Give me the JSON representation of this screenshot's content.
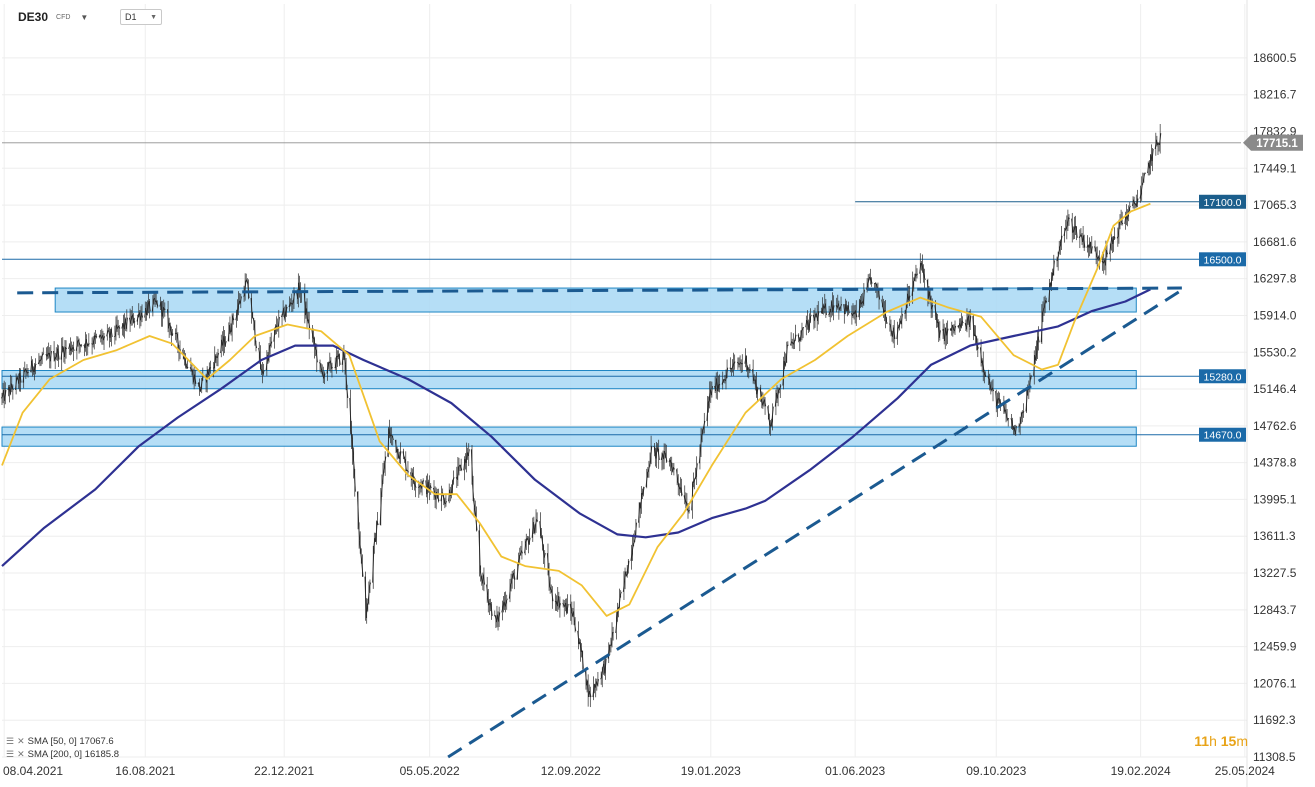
{
  "header": {
    "symbol": "DE30",
    "symbol_type": "CFD",
    "timeframe": "D1"
  },
  "countdown": {
    "hours": "11",
    "h": "h",
    "minutes": "15",
    "m": "m"
  },
  "indicators": [
    {
      "label": "SMA [50, 0] 17067.6",
      "color": "#f1c232"
    },
    {
      "label": "SMA [200, 0] 16185.8",
      "color": "#2e3192"
    }
  ],
  "chart_data": {
    "type": "candlestick",
    "symbol": "DE30",
    "timeframe": "D1",
    "ylim": [
      11308.5,
      18850
    ],
    "y_ticks": [
      18600.5,
      18216.7,
      17832.9,
      17449.1,
      17065.3,
      16681.6,
      16297.8,
      15914.0,
      15530.2,
      15146.4,
      14762.6,
      14378.8,
      13995.1,
      13611.3,
      13227.5,
      12843.7,
      12459.9,
      12076.1,
      11692.3,
      11308.5
    ],
    "y_tick_labels": [
      "18600.5",
      "18216.7",
      "17832.9",
      "17449.1",
      "17065.3",
      "16681.6",
      "16297.8",
      "15914.0",
      "15530.2",
      "15146.4",
      "14762.6",
      "14378.8",
      "13995.1",
      "13611.3",
      "13227.5",
      "12843.7",
      "12459.9",
      "12076.1",
      "11692.3",
      "11308.5"
    ],
    "x_labels": [
      "08.04.2021",
      "16.08.2021",
      "22.12.2021",
      "05.05.2022",
      "12.09.2022",
      "19.01.2023",
      "01.06.2023",
      "09.10.2023",
      "19.02.2024",
      "25.05.2024"
    ],
    "x_label_dates": [
      "2021-04-08",
      "2021-08-16",
      "2021-12-22",
      "2022-05-05",
      "2022-09-12",
      "2023-01-19",
      "2023-06-01",
      "2023-10-09",
      "2024-02-19",
      "2024-05-25"
    ],
    "x_range": [
      "2021-04-06",
      "2024-05-27"
    ],
    "current_price": {
      "value": 17715.1,
      "label": "17715.1",
      "color": "#8a8a8a"
    },
    "price_path": [
      [
        "2021-04-06",
        15050
      ],
      [
        "2021-05-05",
        15400
      ],
      [
        "2021-06-10",
        15600
      ],
      [
        "2021-07-15",
        15700
      ],
      [
        "2021-08-13",
        15950
      ],
      [
        "2021-08-28",
        16050
      ],
      [
        "2021-09-20",
        15500
      ],
      [
        "2021-10-05",
        15150
      ],
      [
        "2021-10-30",
        15700
      ],
      [
        "2021-11-17",
        16250
      ],
      [
        "2021-12-01",
        15300
      ],
      [
        "2021-12-15",
        15800
      ],
      [
        "2022-01-05",
        16200
      ],
      [
        "2022-01-25",
        15300
      ],
      [
        "2022-02-15",
        15500
      ],
      [
        "2022-03-07",
        12800
      ],
      [
        "2022-03-28",
        14700
      ],
      [
        "2022-04-20",
        14200
      ],
      [
        "2022-05-20",
        14000
      ],
      [
        "2022-06-10",
        14500
      ],
      [
        "2022-06-20",
        13250
      ],
      [
        "2022-07-05",
        12700
      ],
      [
        "2022-07-28",
        13400
      ],
      [
        "2022-08-12",
        13800
      ],
      [
        "2022-08-25",
        13000
      ],
      [
        "2022-09-14",
        12800
      ],
      [
        "2022-09-29",
        11950
      ],
      [
        "2022-10-15",
        12300
      ],
      [
        "2022-11-05",
        13400
      ],
      [
        "2022-11-25",
        14500
      ],
      [
        "2022-12-12",
        14400
      ],
      [
        "2022-12-30",
        13900
      ],
      [
        "2023-01-18",
        15100
      ],
      [
        "2023-02-05",
        15350
      ],
      [
        "2023-02-20",
        15450
      ],
      [
        "2023-03-15",
        14800
      ],
      [
        "2023-03-30",
        15550
      ],
      [
        "2023-04-25",
        15900
      ],
      [
        "2023-05-15",
        16050
      ],
      [
        "2023-06-01",
        15900
      ],
      [
        "2023-06-16",
        16300
      ],
      [
        "2023-07-07",
        15700
      ],
      [
        "2023-07-31",
        16450
      ],
      [
        "2023-08-18",
        15700
      ],
      [
        "2023-09-15",
        15850
      ],
      [
        "2023-10-05",
        15100
      ],
      [
        "2023-10-27",
        14700
      ],
      [
        "2023-11-10",
        15250
      ],
      [
        "2023-11-20",
        15900
      ],
      [
        "2023-12-05",
        16600
      ],
      [
        "2023-12-14",
        16900
      ],
      [
        "2024-01-05",
        16600
      ],
      [
        "2024-01-17",
        16500
      ],
      [
        "2024-02-01",
        16900
      ],
      [
        "2024-02-09",
        17000
      ],
      [
        "2024-02-19",
        17200
      ],
      [
        "2024-02-28",
        17550
      ],
      [
        "2024-03-08",
        17780
      ]
    ],
    "horizontal_levels": [
      {
        "value": 17100.0,
        "label": "17100.0",
        "from": "2023-06-01",
        "color": "#1b5e8c"
      },
      {
        "value": 16500.0,
        "label": "16500.0",
        "from": "2021-04-06",
        "color": "#1b6aa8"
      },
      {
        "value": 15280.0,
        "label": "15280.0",
        "from": "2021-04-06",
        "color": "#1b6aa8"
      },
      {
        "value": 14670.0,
        "label": "14670.0",
        "from": "2021-04-06",
        "color": "#1b6aa8"
      }
    ],
    "zones": [
      {
        "from": "2021-05-25",
        "to": "2024-02-15",
        "high": 16200,
        "low": 15950
      },
      {
        "from": "2021-04-06",
        "to": "2024-02-15",
        "high": 15340,
        "low": 15150
      },
      {
        "from": "2021-04-06",
        "to": "2024-02-15",
        "high": 14750,
        "low": 14550
      }
    ],
    "trendlines": [
      {
        "style": "dashed",
        "points": [
          [
            "2021-04-20",
            16150
          ],
          [
            "2024-03-28",
            16200
          ]
        ]
      },
      {
        "style": "dashed",
        "points": [
          [
            "2022-05-22",
            11308.5
          ],
          [
            "2024-03-28",
            16180
          ]
        ]
      }
    ],
    "sma50": [
      [
        "2021-04-06",
        14350
      ],
      [
        "2021-04-25",
        14900
      ],
      [
        "2021-05-20",
        15250
      ],
      [
        "2021-06-20",
        15450
      ],
      [
        "2021-07-20",
        15550
      ],
      [
        "2021-08-20",
        15700
      ],
      [
        "2021-09-10",
        15620
      ],
      [
        "2021-10-12",
        15250
      ],
      [
        "2021-11-02",
        15450
      ],
      [
        "2021-11-25",
        15700
      ],
      [
        "2021-12-25",
        15820
      ],
      [
        "2022-01-25",
        15750
      ],
      [
        "2022-02-20",
        15500
      ],
      [
        "2022-03-20",
        14600
      ],
      [
        "2022-04-15",
        14250
      ],
      [
        "2022-05-10",
        14050
      ],
      [
        "2022-05-30",
        14050
      ],
      [
        "2022-06-20",
        13750
      ],
      [
        "2022-07-10",
        13400
      ],
      [
        "2022-08-01",
        13300
      ],
      [
        "2022-09-01",
        13250
      ],
      [
        "2022-09-22",
        13100
      ],
      [
        "2022-10-15",
        12780
      ],
      [
        "2022-11-05",
        12900
      ],
      [
        "2022-12-01",
        13500
      ],
      [
        "2022-12-25",
        13850
      ],
      [
        "2023-01-20",
        14350
      ],
      [
        "2023-02-20",
        14900
      ],
      [
        "2023-03-25",
        15250
      ],
      [
        "2023-04-25",
        15450
      ],
      [
        "2023-05-25",
        15700
      ],
      [
        "2023-06-30",
        15950
      ],
      [
        "2023-07-31",
        16100
      ],
      [
        "2023-08-25",
        16000
      ],
      [
        "2023-09-25",
        15900
      ],
      [
        "2023-10-25",
        15500
      ],
      [
        "2023-11-20",
        15350
      ],
      [
        "2023-12-05",
        15400
      ],
      [
        "2023-12-20",
        15850
      ],
      [
        "2024-01-10",
        16400
      ],
      [
        "2024-01-25",
        16850
      ],
      [
        "2024-02-10",
        17000
      ],
      [
        "2024-02-28",
        17080
      ]
    ],
    "sma200": [
      [
        "2021-04-06",
        13300
      ],
      [
        "2021-05-15",
        13700
      ],
      [
        "2021-07-01",
        14100
      ],
      [
        "2021-08-10",
        14550
      ],
      [
        "2021-09-15",
        14850
      ],
      [
        "2021-10-25",
        15150
      ],
      [
        "2021-12-01",
        15450
      ],
      [
        "2022-01-01",
        15600
      ],
      [
        "2022-02-05",
        15600
      ],
      [
        "2022-03-05",
        15450
      ],
      [
        "2022-04-15",
        15250
      ],
      [
        "2022-05-25",
        15000
      ],
      [
        "2022-07-01",
        14650
      ],
      [
        "2022-08-10",
        14200
      ],
      [
        "2022-09-20",
        13850
      ],
      [
        "2022-10-25",
        13630
      ],
      [
        "2022-11-20",
        13600
      ],
      [
        "2022-12-20",
        13650
      ],
      [
        "2023-01-20",
        13800
      ],
      [
        "2023-02-20",
        13900
      ],
      [
        "2023-03-10",
        13980
      ],
      [
        "2023-04-20",
        14300
      ],
      [
        "2023-05-30",
        14650
      ],
      [
        "2023-07-10",
        15050
      ],
      [
        "2023-08-10",
        15400
      ],
      [
        "2023-09-15",
        15600
      ],
      [
        "2023-10-25",
        15700
      ],
      [
        "2023-12-05",
        15800
      ],
      [
        "2024-01-05",
        15960
      ],
      [
        "2024-02-05",
        16060
      ],
      [
        "2024-02-28",
        16185.8
      ]
    ]
  }
}
